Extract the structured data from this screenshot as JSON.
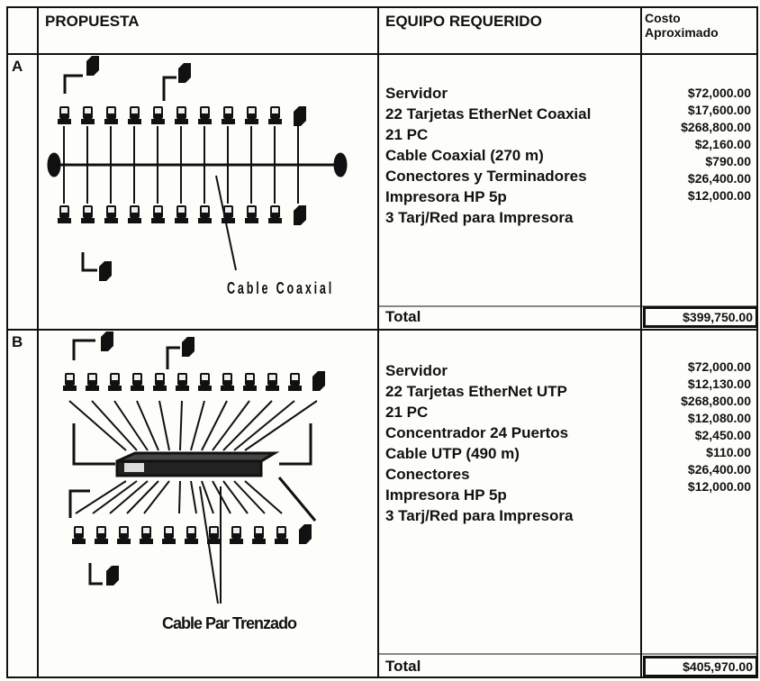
{
  "header": {
    "columns": [
      "PROPUESTA",
      "EQUIPO REQUERIDO",
      "Costo Aproximado"
    ]
  },
  "sections": [
    {
      "label": "A",
      "diagram_label": "Cable Coaxial",
      "items": [
        "Servidor",
        "22 Tarjetas EtherNet Coaxial",
        "21 PC",
        "Cable Coaxial (270 m)",
        "Conectores y Terminadores",
        "Impresora HP 5p",
        "3 Tarj/Red para Impresora"
      ],
      "costs": [
        "$72,000.00",
        "$17,600.00",
        "$268,800.00",
        "$2,160.00",
        "$790.00",
        "$26,400.00",
        "$12,000.00"
      ],
      "total_label": "Total",
      "total": "$399,750.00"
    },
    {
      "label": "B",
      "diagram_label": "Cable Par Trenzado",
      "items": [
        "Servidor",
        "22 Tarjetas EtherNet UTP",
        "21 PC",
        "Concentrador 24 Puertos",
        "Cable UTP (490 m)",
        "Conectores",
        "Impresora HP 5p",
        "3 Tarj/Red para Impresora"
      ],
      "costs": [
        "$72,000.00",
        "$12,130.00",
        "$268,800.00",
        "$12,080.00",
        "$2,450.00",
        "$110.00",
        "$26,400.00",
        "$12,000.00"
      ],
      "total_label": "Total",
      "total": "$405,970.00"
    }
  ]
}
